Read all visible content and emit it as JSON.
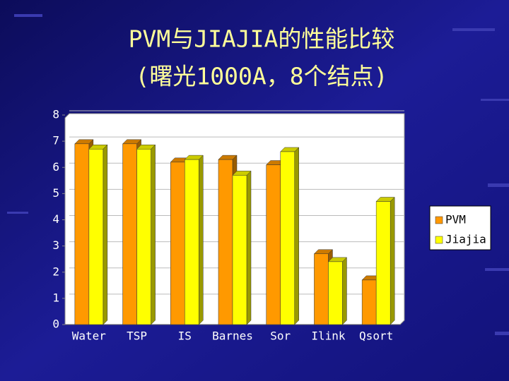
{
  "chart_data": {
    "type": "bar3d",
    "title": "PVM与JIAJIA的性能比较",
    "subtitle": "(曙光1000A，8个结点)",
    "categories": [
      "Water",
      "TSP",
      "IS",
      "Barnes",
      "Sor",
      "Ilink",
      "Qsort"
    ],
    "series": [
      {
        "name": "PVM",
        "color": "#ff9900",
        "values": [
          6.9,
          6.9,
          6.2,
          6.3,
          6.1,
          2.7,
          1.7
        ]
      },
      {
        "name": "Jiajia",
        "color": "#ffff00",
        "values": [
          6.7,
          6.7,
          6.3,
          5.7,
          6.6,
          2.4,
          4.7
        ]
      }
    ],
    "ylim": [
      0,
      8
    ],
    "yticks": [
      0,
      1,
      2,
      3,
      4,
      5,
      6,
      7,
      8
    ],
    "grid": true,
    "legend": "right"
  }
}
